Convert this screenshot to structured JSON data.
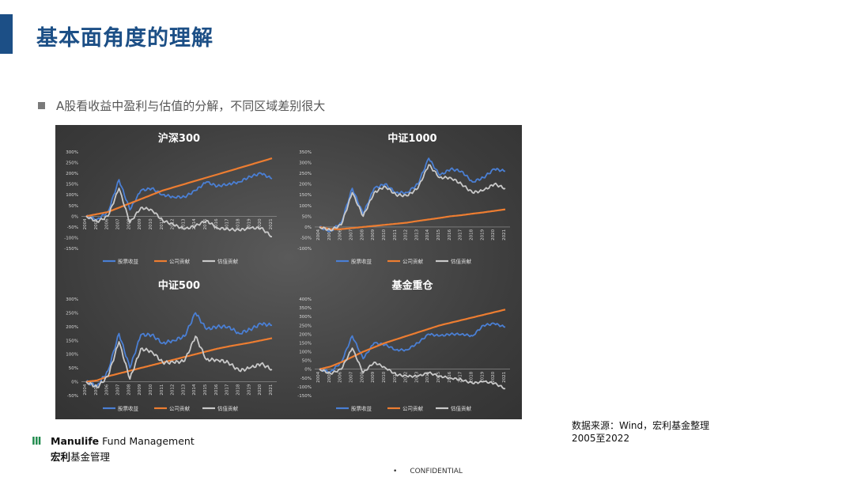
{
  "page": {
    "title": "基本面角度的理解",
    "bullet": "A股看收益中盈利与估值的分解，不同区域差别很大",
    "source_line1": "数据来源：Wind，宏利基金整理",
    "source_line2": "2005至2022",
    "footer": "CONFIDENTIAL",
    "footer_dot": "•"
  },
  "logo": {
    "mark": "III",
    "brand_bold": "Manulife",
    "brand_rest": " Fund Management",
    "cn_bold": "宏利",
    "cn_rest": "基金管理"
  },
  "colors": {
    "accent": "#1c4f86",
    "series_stock": "#4a7fd4",
    "series_company": "#ed7d31",
    "series_valuation": "#c9c9c9",
    "panel_bg": "#444444"
  },
  "chart_data": [
    {
      "type": "line",
      "title": "沪深300",
      "ylim": [
        -150,
        300
      ],
      "yticks": [
        -150,
        -100,
        -50,
        0,
        50,
        100,
        150,
        200,
        250,
        300
      ],
      "x": [
        "2004",
        "2005",
        "2006",
        "2007",
        "2008",
        "2009",
        "2010",
        "2011",
        "2012",
        "2013",
        "2014",
        "2015",
        "2016",
        "2017",
        "2018",
        "2019",
        "2020",
        "2021"
      ],
      "legend": "bottom",
      "series": [
        {
          "name": "股票收益",
          "values": [
            0,
            -15,
            20,
            170,
            30,
            120,
            130,
            100,
            90,
            90,
            120,
            160,
            140,
            150,
            160,
            185,
            200,
            175
          ]
        },
        {
          "name": "公司贡献",
          "values": [
            0,
            10,
            20,
            40,
            60,
            80,
            100,
            120,
            135,
            150,
            165,
            180,
            195,
            210,
            225,
            240,
            255,
            270
          ]
        },
        {
          "name": "估值贡献",
          "values": [
            0,
            -25,
            0,
            130,
            -30,
            40,
            30,
            -20,
            -40,
            -60,
            -45,
            -20,
            -55,
            -60,
            -65,
            -55,
            -55,
            -95
          ]
        }
      ]
    },
    {
      "type": "line",
      "title": "中证1000",
      "ylim": [
        -100,
        350
      ],
      "yticks": [
        -100,
        -50,
        0,
        50,
        100,
        150,
        200,
        250,
        300,
        350
      ],
      "x": [
        "2004",
        "2005",
        "2006",
        "2007",
        "2008",
        "2009",
        "2010",
        "2011",
        "2012",
        "2013",
        "2014",
        "2015",
        "2016",
        "2017",
        "2018",
        "2019",
        "2020",
        "2021"
      ],
      "legend": "bottom",
      "series": [
        {
          "name": "股票收益",
          "values": [
            0,
            -20,
            20,
            180,
            60,
            180,
            200,
            160,
            160,
            200,
            320,
            240,
            270,
            260,
            210,
            230,
            270,
            260
          ]
        },
        {
          "name": "公司贡献",
          "values": [
            0,
            -10,
            -10,
            -5,
            0,
            5,
            10,
            15,
            20,
            28,
            35,
            42,
            50,
            55,
            62,
            68,
            75,
            82
          ]
        },
        {
          "name": "估值贡献",
          "values": [
            0,
            -15,
            10,
            160,
            50,
            160,
            190,
            150,
            145,
            180,
            290,
            230,
            230,
            200,
            160,
            170,
            200,
            180
          ]
        }
      ]
    },
    {
      "type": "line",
      "title": "中证500",
      "ylim": [
        -50,
        300
      ],
      "yticks": [
        -50,
        0,
        50,
        100,
        150,
        200,
        250,
        300
      ],
      "x": [
        "2004",
        "2005",
        "2006",
        "2007",
        "2008",
        "2009",
        "2010",
        "2011",
        "2012",
        "2013",
        "2014",
        "2015",
        "2016",
        "2017",
        "2018",
        "2019",
        "2020",
        "2021"
      ],
      "legend": "bottom",
      "series": [
        {
          "name": "股票收益",
          "values": [
            0,
            -15,
            40,
            175,
            50,
            170,
            170,
            140,
            150,
            165,
            250,
            190,
            200,
            200,
            175,
            190,
            210,
            205
          ]
        },
        {
          "name": "公司贡献",
          "values": [
            0,
            5,
            20,
            30,
            40,
            50,
            60,
            70,
            80,
            90,
            100,
            110,
            120,
            128,
            135,
            142,
            150,
            158
          ]
        },
        {
          "name": "估值贡献",
          "values": [
            0,
            -20,
            20,
            145,
            10,
            120,
            110,
            70,
            70,
            75,
            165,
            80,
            80,
            70,
            40,
            50,
            65,
            45
          ]
        }
      ]
    },
    {
      "type": "line",
      "title": "基金重仓",
      "ylim": [
        -150,
        400
      ],
      "yticks": [
        -150,
        -100,
        -50,
        0,
        50,
        100,
        150,
        200,
        250,
        300,
        350,
        400
      ],
      "x": [
        "2004",
        "2005",
        "2006",
        "2007",
        "2008",
        "2009",
        "2010",
        "2011",
        "2012",
        "2013",
        "2014",
        "2015",
        "2016",
        "2017",
        "2018",
        "2019",
        "2020",
        "2021"
      ],
      "legend": "bottom",
      "series": [
        {
          "name": "股票收益",
          "values": [
            0,
            -15,
            40,
            190,
            60,
            150,
            140,
            110,
            110,
            150,
            200,
            190,
            200,
            200,
            190,
            250,
            260,
            240
          ]
        },
        {
          "name": "公司贡献",
          "values": [
            0,
            15,
            40,
            70,
            100,
            125,
            150,
            170,
            190,
            210,
            230,
            250,
            265,
            280,
            295,
            310,
            325,
            340
          ]
        },
        {
          "name": "估值贡献",
          "values": [
            0,
            -25,
            0,
            120,
            -20,
            40,
            10,
            -30,
            -40,
            -40,
            -20,
            -40,
            -50,
            -60,
            -80,
            -70,
            -80,
            -110
          ]
        }
      ]
    }
  ]
}
